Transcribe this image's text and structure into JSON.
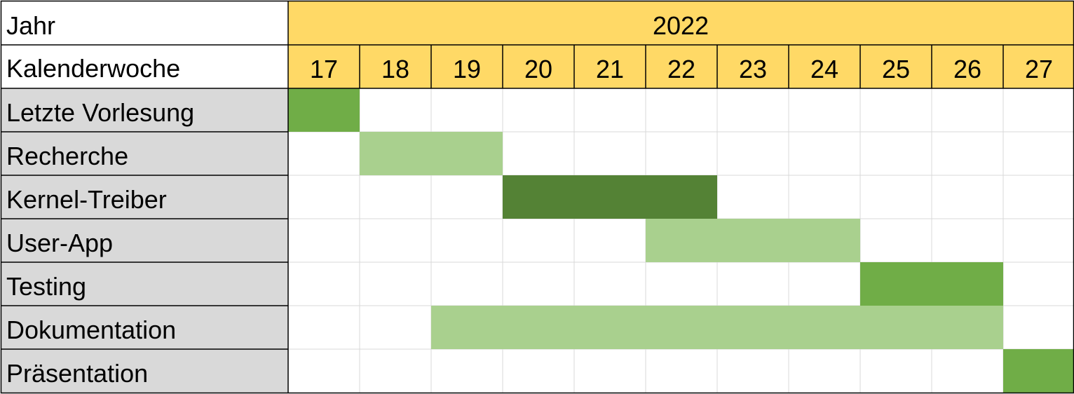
{
  "chart_data": {
    "type": "gantt",
    "year_header": "Jahr",
    "year": "2022",
    "week_header": "Kalenderwoche",
    "weeks": [
      "17",
      "18",
      "19",
      "20",
      "21",
      "22",
      "23",
      "24",
      "25",
      "26",
      "27"
    ],
    "tasks": [
      {
        "label": "Letzte Vorlesung",
        "start_week": 17,
        "end_week": 17,
        "color": "#70AD47"
      },
      {
        "label": "Recherche",
        "start_week": 18,
        "end_week": 19,
        "color": "#A9D08E"
      },
      {
        "label": "Kernel-Treiber",
        "start_week": 20,
        "end_week": 22,
        "color": "#548235"
      },
      {
        "label": "User-App",
        "start_week": 22,
        "end_week": 24,
        "color": "#A9D08E"
      },
      {
        "label": "Testing",
        "start_week": 25,
        "end_week": 26,
        "color": "#70AD47"
      },
      {
        "label": "Dokumentation",
        "start_week": 19,
        "end_week": 26,
        "color": "#A9D08E"
      },
      {
        "label": "Präsentation",
        "start_week": 27,
        "end_week": 27,
        "color": "#70AD47"
      }
    ],
    "colors": {
      "header_fill": "#FFD966",
      "label_fill": "#D9D9D9",
      "grid": "#D9D9D9",
      "border": "#000000"
    }
  }
}
